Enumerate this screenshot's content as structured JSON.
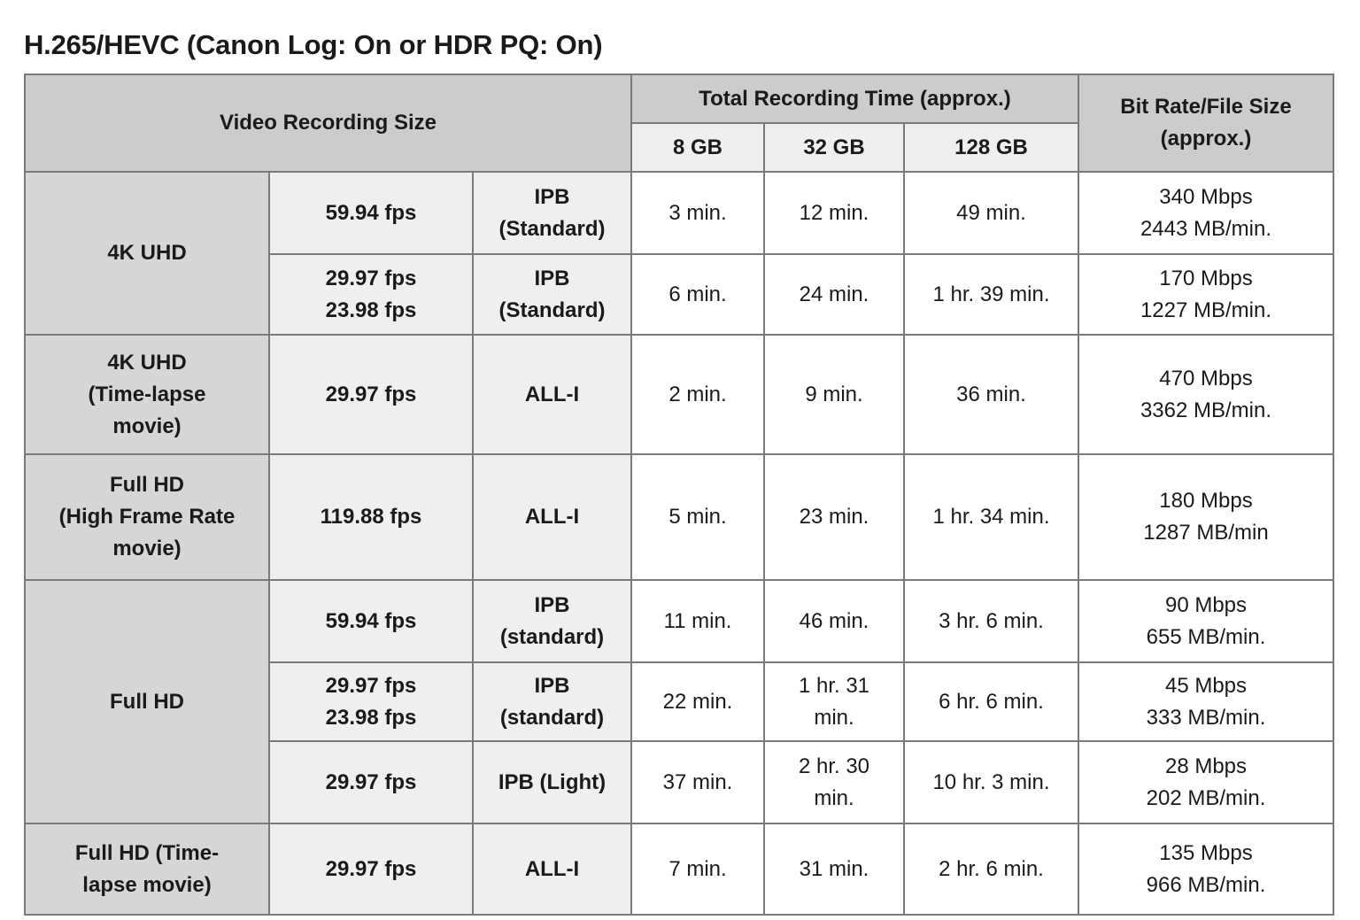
{
  "title": "H.265/HEVC (Canon Log: On or HDR PQ: On)",
  "header": {
    "video_recording_size": "Video Recording Size",
    "total_recording_time": "Total Recording Time (approx.)",
    "bit_rate": "Bit Rate/File Size\n(approx.)",
    "capacities": [
      "8 GB",
      "32 GB",
      "128 GB"
    ]
  },
  "groups": [
    {
      "label": "4K UHD",
      "rows": [
        {
          "fps": "59.94 fps",
          "codec": "IPB\n(Standard)",
          "times": [
            "3 min.",
            "12 min.",
            "49 min."
          ],
          "bitrate": "340 Mbps\n2443 MB/min."
        },
        {
          "fps": "29.97 fps\n23.98 fps",
          "codec": "IPB\n(Standard)",
          "times": [
            "6 min.",
            "24 min.",
            "1 hr. 39 min."
          ],
          "bitrate": "170 Mbps\n1227 MB/min."
        }
      ]
    },
    {
      "label": "4K UHD\n(Time-lapse\nmovie)",
      "rows": [
        {
          "fps": "29.97 fps",
          "codec": "ALL-I",
          "times": [
            "2 min.",
            "9 min.",
            "36 min."
          ],
          "bitrate": "470 Mbps\n3362 MB/min."
        }
      ]
    },
    {
      "label": "Full HD\n(High Frame Rate\nmovie)",
      "rows": [
        {
          "fps": "119.88 fps",
          "codec": "ALL-I",
          "times": [
            "5 min.",
            "23 min.",
            "1 hr. 34 min."
          ],
          "bitrate": "180 Mbps\n1287 MB/min"
        }
      ]
    },
    {
      "label": "Full HD",
      "rows": [
        {
          "fps": "59.94 fps",
          "codec": "IPB\n(standard)",
          "times": [
            "11 min.",
            "46 min.",
            "3 hr. 6 min."
          ],
          "bitrate": "90 Mbps\n655 MB/min."
        },
        {
          "fps": "29.97 fps\n23.98 fps",
          "codec": "IPB\n(standard)",
          "times": [
            "22 min.",
            "1 hr. 31\nmin.",
            "6 hr. 6 min."
          ],
          "bitrate": "45 Mbps\n333 MB/min."
        },
        {
          "fps": "29.97 fps",
          "codec": "IPB (Light)",
          "times": [
            "37 min.",
            "2 hr. 30\nmin.",
            "10 hr. 3 min."
          ],
          "bitrate": "28 Mbps\n202 MB/min."
        }
      ]
    },
    {
      "label": "Full HD (Time-\nlapse movie)",
      "rows": [
        {
          "fps": "29.97 fps",
          "codec": "ALL-I",
          "times": [
            "7 min.",
            "31 min.",
            "2 hr. 6 min."
          ],
          "bitrate": "135 Mbps\n966 MB/min."
        }
      ]
    }
  ],
  "colors": {
    "header_bg": "#cccccc",
    "group_bg": "#d6d6d6",
    "sub_bg": "#efefef",
    "border": "#7a7a7a"
  }
}
